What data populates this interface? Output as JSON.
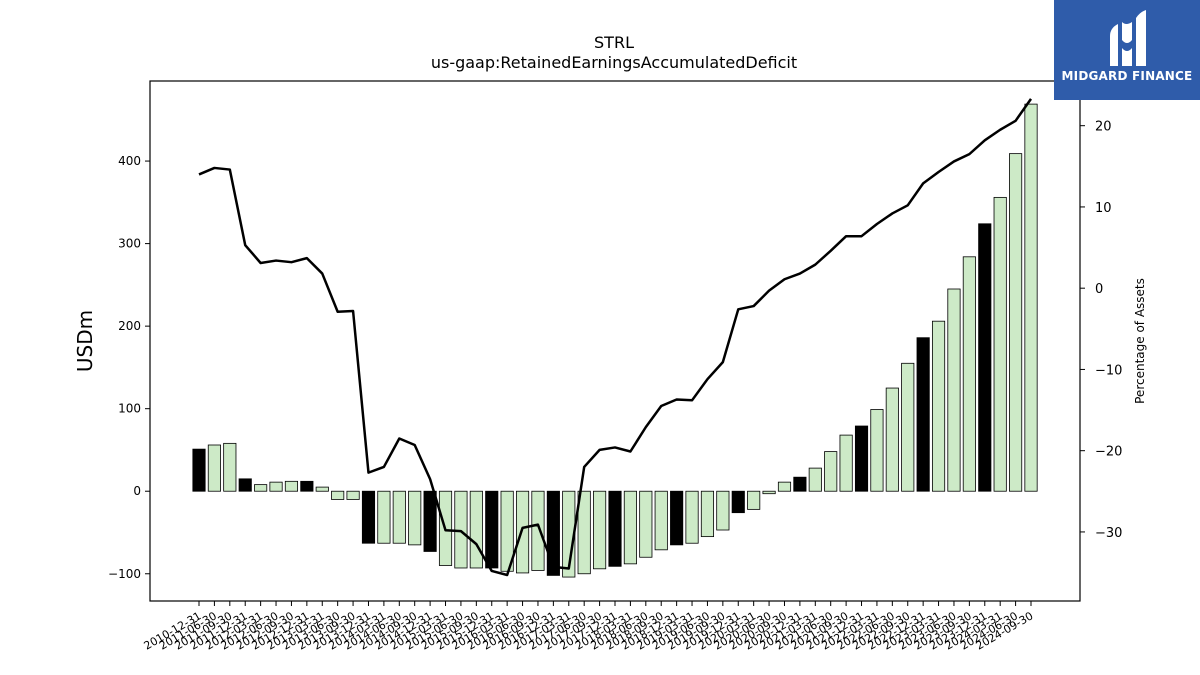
{
  "logo": {
    "text": "MIDGARD FINANCE"
  },
  "chart_data": {
    "type": "bar+line",
    "title": "STRL",
    "subtitle": "us-gaap:RetainedEarningsAccumulatedDeficit",
    "ylabel": "USDm",
    "y2label": "Percentage of Assets",
    "ylim": [
      -133,
      497
    ],
    "y2lim": [
      -38.5,
      25.5
    ],
    "yticks": [
      -100,
      0,
      100,
      200,
      300,
      400
    ],
    "y2ticks": [
      -30,
      -20,
      -10,
      0,
      10,
      20
    ],
    "grid": false,
    "legend": "none",
    "colors": {
      "bar_quarter": "#cdeac7",
      "bar_year_end": "#000000",
      "line": "#000000",
      "bar_edge": "#000000"
    },
    "categories": [
      "2010-12-31",
      "2011-06-30",
      "2011-09-30",
      "2011-12-31",
      "2012-03-31",
      "2012-06-30",
      "2012-09-30",
      "2012-12-31",
      "2013-03-31",
      "2013-06-30",
      "2013-09-30",
      "2013-12-31",
      "2014-03-31",
      "2014-06-30",
      "2014-09-30",
      "2014-12-31",
      "2015-03-31",
      "2015-06-30",
      "2015-09-30",
      "2015-12-31",
      "2016-03-31",
      "2016-06-30",
      "2016-09-30",
      "2016-12-31",
      "2017-03-31",
      "2017-06-30",
      "2017-09-30",
      "2017-12-31",
      "2018-03-31",
      "2018-06-30",
      "2018-09-30",
      "2018-12-31",
      "2019-03-31",
      "2019-06-30",
      "2019-09-30",
      "2019-12-31",
      "2020-03-31",
      "2020-06-30",
      "2020-09-30",
      "2020-12-31",
      "2021-03-31",
      "2021-06-30",
      "2021-09-30",
      "2021-12-31",
      "2022-03-31",
      "2022-06-30",
      "2022-09-30",
      "2022-12-31",
      "2023-03-31",
      "2023-06-30",
      "2023-09-30",
      "2023-12-31",
      "2024-03-31",
      "2024-06-30",
      "2024-09-30"
    ],
    "series": [
      {
        "kind": "bar",
        "axis": "left",
        "values": [
          51,
          56,
          58,
          15,
          8,
          11,
          12,
          12,
          5,
          -10,
          -10,
          -63,
          -63,
          -63,
          -65,
          -73,
          -90,
          -93,
          -93,
          -93,
          -97,
          -99,
          -96,
          -102,
          -104,
          -100,
          -94,
          -91,
          -88,
          -80,
          -71,
          -65,
          -63,
          -55,
          -47,
          -26,
          -22,
          -3,
          11,
          17,
          28,
          48,
          68,
          79,
          99,
          125,
          155,
          186,
          206,
          245,
          284,
          324,
          356,
          409,
          469
        ],
        "year_end": [
          true,
          false,
          false,
          true,
          false,
          false,
          false,
          true,
          false,
          false,
          false,
          true,
          false,
          false,
          false,
          true,
          false,
          false,
          false,
          true,
          false,
          false,
          false,
          true,
          false,
          false,
          false,
          true,
          false,
          false,
          false,
          true,
          false,
          false,
          false,
          true,
          false,
          false,
          false,
          true,
          false,
          false,
          false,
          true,
          false,
          false,
          false,
          true,
          false,
          false,
          false,
          true,
          false,
          false,
          false
        ]
      },
      {
        "kind": "line",
        "axis": "right",
        "values": [
          14,
          14.8,
          14.6,
          5.3,
          3.1,
          3.4,
          3.2,
          3.7,
          1.8,
          -2.9,
          -2.8,
          -22.7,
          -22,
          -18.5,
          -19.3,
          -23.5,
          -29.8,
          -29.9,
          -31.5,
          -34.8,
          -35.3,
          -29.5,
          -29.1,
          -34.3,
          -34.5,
          -22,
          -19.9,
          -19.6,
          -20.1,
          -17.1,
          -14.5,
          -13.7,
          -13.8,
          -11.2,
          -9.1,
          -2.6,
          -2.2,
          -0.3,
          1.1,
          1.8,
          2.9,
          4.6,
          6.4,
          6.4,
          7.9,
          9.2,
          10.2,
          12.9,
          14.3,
          15.6,
          16.5,
          18.2,
          19.5,
          20.6,
          23.3
        ]
      }
    ]
  }
}
